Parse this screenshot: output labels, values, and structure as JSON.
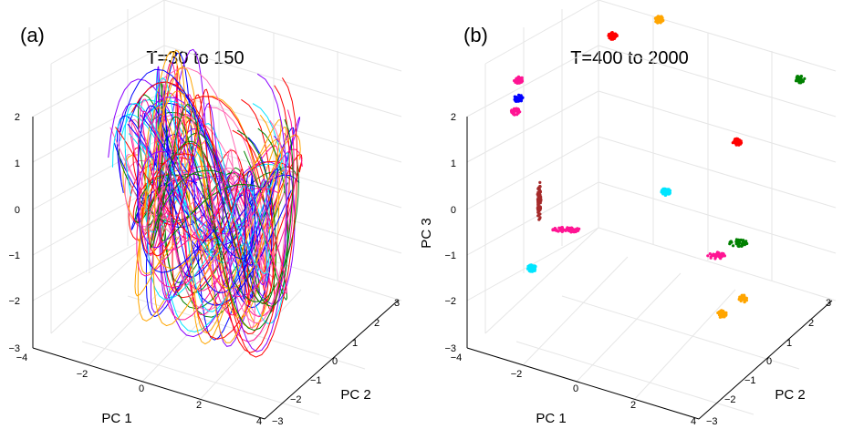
{
  "chart_data": [
    {
      "panel_label": "(a)",
      "type": "scatter3d-trajectories",
      "title": "T=30 to 150",
      "xlabel": "PC 1",
      "ylabel": "PC 2",
      "zlabel": "",
      "xlim": [
        -4,
        4
      ],
      "ylim": [
        -3,
        3
      ],
      "zlim": [
        -3,
        2
      ],
      "x_ticks": [
        "−4",
        "−2",
        "0",
        "2",
        "4"
      ],
      "y_ticks": [
        "−3",
        "−2",
        "−1",
        "0",
        "1",
        "2",
        "3"
      ],
      "z_ticks": [
        "−3",
        "−2",
        "−1",
        "0",
        "1",
        "2"
      ],
      "grid": true,
      "series": [
        {
          "name": "red",
          "color": "#ff0000"
        },
        {
          "name": "green",
          "color": "#008000"
        },
        {
          "name": "blue",
          "color": "#0000ff"
        },
        {
          "name": "magenta",
          "color": "#ff1493"
        },
        {
          "name": "deep pink",
          "color": "#ff69b4"
        },
        {
          "name": "cyan",
          "color": "#00e5ff"
        },
        {
          "name": "orange",
          "color": "#ffa500"
        },
        {
          "name": "purple",
          "color": "#8b00ff"
        }
      ]
    },
    {
      "panel_label": "(b)",
      "type": "scatter3d-clusters",
      "title": "T=400 to 2000",
      "xlabel": "PC 1",
      "ylabel": "PC 2",
      "zlabel": "PC 3",
      "xlim": [
        -4,
        4
      ],
      "ylim": [
        -3,
        3
      ],
      "zlim": [
        -3,
        2
      ],
      "x_ticks": [
        "−4",
        "−2",
        "0",
        "2",
        "4"
      ],
      "y_ticks": [
        "−3",
        "−2",
        "−1",
        "0",
        "1",
        "2",
        "3"
      ],
      "z_ticks": [
        "−3",
        "−2",
        "−1",
        "0",
        "1",
        "2"
      ],
      "grid": true,
      "clusters": [
        {
          "name": "magenta-top",
          "color": "#ff1493",
          "x": -3.6,
          "y": -1.2,
          "z": 2.1
        },
        {
          "name": "blue",
          "color": "#0000ff",
          "x": -3.6,
          "y": -1.2,
          "z": 1.7
        },
        {
          "name": "pink-left",
          "color": "#ff1493",
          "x": -3.7,
          "y": -1.2,
          "z": 1.4
        },
        {
          "name": "red-top",
          "color": "#ff0000",
          "x": -2.2,
          "y": 1.2,
          "z": 2.3
        },
        {
          "name": "orange-top",
          "color": "#ffa500",
          "x": -1.2,
          "y": 2.0,
          "z": 2.5
        },
        {
          "name": "green-right",
          "color": "#008000",
          "x": 3.2,
          "y": 2.6,
          "z": 1.8
        },
        {
          "name": "red-mid",
          "color": "#ff0000",
          "x": 1.8,
          "y": 1.6,
          "z": 0.6
        },
        {
          "name": "cyan-mid",
          "color": "#00e5ff",
          "x": -0.2,
          "y": 1.0,
          "z": -0.6
        },
        {
          "name": "green-mid",
          "color": "#008000",
          "x": 2.6,
          "y": 0.6,
          "z": -1.0
        },
        {
          "name": "pink-mid",
          "color": "#ff1493",
          "x": 2.0,
          "y": 0.4,
          "z": -1.3
        },
        {
          "name": "orange-right",
          "color": "#ffa500",
          "x": 3.0,
          "y": 0.3,
          "z": -2.0
        },
        {
          "name": "orange-low",
          "color": "#ffa500",
          "x": 2.5,
          "y": 0.0,
          "z": -2.3
        },
        {
          "name": "brown-streak",
          "color": "#a52a2a",
          "x": -3.2,
          "y": -0.8,
          "z": -0.6
        },
        {
          "name": "pink-streak",
          "color": "#ff1493",
          "x": -2.2,
          "y": -0.9,
          "z": -1.0
        },
        {
          "name": "cyan-low",
          "color": "#00e5ff",
          "x": -3.3,
          "y": -1.0,
          "z": -2.0
        }
      ]
    }
  ]
}
